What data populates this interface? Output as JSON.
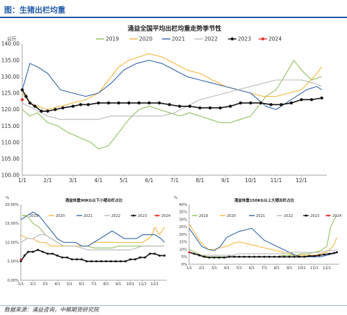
{
  "header": {
    "title": "图：生猪出栏均重"
  },
  "footer": {
    "source": "数据来源：涌益咨询，中粮期货研究院"
  },
  "months": [
    "1/1",
    "2/1",
    "3/1",
    "4/1",
    "5/1",
    "6/1",
    "7/1",
    "8/1",
    "9/1",
    "10/1",
    "11/1",
    "12/1"
  ],
  "colors": {
    "2019": "#8fbf5a",
    "2020": "#f5b43a",
    "2021": "#2e64a8",
    "2022": "#b8b8b8",
    "2023": "#111111",
    "2024": "#e8302c",
    "title_blue": "#1f5aa8"
  },
  "chart_data": [
    {
      "type": "line",
      "title": "涌益全国平均出栏均重走势季节性",
      "ylabel": "公斤",
      "x_ticks": [
        "1/1",
        "2/1",
        "3/1",
        "4/1",
        "5/1",
        "6/1",
        "7/1",
        "8/1",
        "9/1",
        "10/1",
        "11/1",
        "12/1"
      ],
      "y_ticks": [
        "100.00",
        "105.00",
        "110.00",
        "115.00",
        "120.00",
        "125.00",
        "130.00",
        "135.00",
        "140.00"
      ],
      "ylim": [
        100,
        140
      ],
      "xlim": [
        0,
        12
      ],
      "legend": "top",
      "series": [
        {
          "name": "2019",
          "x": [
            0,
            0.3,
            0.6,
            1,
            1.4,
            1.8,
            2.1,
            2.4,
            2.7,
            3,
            3.4,
            3.8,
            4.2,
            4.6,
            5,
            5.4,
            5.8,
            6.2,
            6.6,
            7,
            7.4,
            7.8,
            8.2,
            8.6,
            9,
            9.3,
            9.6,
            10,
            10.4,
            10.7,
            11,
            11.4,
            11.8
          ],
          "y": [
            120,
            118,
            119,
            116,
            115,
            113,
            112,
            111,
            110,
            108,
            109,
            113,
            117,
            120,
            121,
            120,
            119,
            118,
            119,
            118,
            117,
            116,
            116,
            117,
            118,
            121,
            124,
            126,
            131,
            135,
            132,
            129,
            130
          ]
        },
        {
          "name": "2020",
          "x": [
            0,
            0.3,
            0.6,
            1,
            1.5,
            2,
            2.5,
            3,
            3.4,
            3.8,
            4.2,
            4.6,
            5,
            5.5,
            6,
            6.5,
            7,
            7.5,
            8,
            8.5,
            9,
            9.5,
            10,
            10.5,
            11,
            11.5,
            11.8
          ],
          "y": [
            125,
            122,
            121,
            120,
            121,
            122,
            123,
            125,
            129,
            133,
            135,
            136,
            137,
            136,
            134,
            132,
            131,
            129,
            127,
            126,
            125,
            124,
            124,
            125,
            126,
            130,
            133
          ]
        },
        {
          "name": "2021",
          "x": [
            0,
            0.3,
            0.6,
            1,
            1.5,
            2,
            2.5,
            3,
            3.5,
            4,
            4.5,
            5,
            5.5,
            6,
            6.5,
            7,
            7.5,
            8,
            8.5,
            9,
            9.3,
            9.6,
            10,
            10.4,
            10.8,
            11.2,
            11.6,
            11.8
          ],
          "y": [
            126,
            134,
            133,
            131,
            126,
            125,
            124,
            125,
            128,
            132,
            134,
            135,
            134,
            132,
            130,
            129,
            128,
            127,
            126,
            125,
            123,
            121,
            120,
            122,
            124,
            126,
            127,
            126
          ]
        },
        {
          "name": "2022",
          "x": [
            0,
            0.5,
            1,
            1.5,
            2,
            2.5,
            3,
            3.5,
            4,
            4.5,
            5,
            5.5,
            6,
            6.5,
            7,
            7.5,
            8,
            8.5,
            9,
            9.5,
            10,
            10.5,
            11,
            11.5,
            11.8
          ],
          "y": [
            122,
            120,
            118,
            117,
            117,
            117,
            117,
            118,
            118,
            118,
            118,
            118,
            119,
            121,
            123,
            124,
            125,
            126,
            127,
            128,
            129,
            129,
            129,
            128,
            127
          ]
        },
        {
          "name": "2023",
          "x": [
            0,
            0.15,
            0.3,
            0.5,
            0.75,
            1,
            1.3,
            1.6,
            2,
            2.3,
            2.6,
            3,
            3.4,
            3.8,
            4.2,
            4.6,
            5,
            5.4,
            5.8,
            6.2,
            6.6,
            7,
            7.4,
            7.8,
            8.2,
            8.6,
            9,
            9.4,
            9.8,
            10.2,
            10.6,
            11,
            11.4,
            11.8
          ],
          "y": [
            126,
            124,
            122,
            121,
            119.5,
            119.5,
            120,
            120.5,
            121,
            121.5,
            121.5,
            122,
            122,
            122,
            122,
            122,
            122,
            122,
            121.5,
            121,
            121,
            120.5,
            120.5,
            120.5,
            121,
            122,
            122,
            122,
            121.5,
            121.5,
            122,
            123,
            123,
            123.5
          ]
        },
        {
          "name": "2024",
          "x": [
            0
          ],
          "y": [
            123
          ]
        }
      ]
    },
    {
      "type": "line",
      "title": "涌益体重90KG以下小猪出栏占比",
      "ylabel": "%",
      "x_ticks": [
        "1/1",
        "2/1",
        "3/1",
        "4/1",
        "5/1",
        "6/1",
        "7/1",
        "8/1",
        "9/1",
        "10/1",
        "11/1",
        "12/1"
      ],
      "y_ticks": [
        "0.00%",
        "5.00%",
        "10.00%",
        "15.00%",
        "20.00%"
      ],
      "ylim": [
        0,
        20
      ],
      "xlim": [
        0,
        12
      ],
      "legend": "top",
      "series": [
        {
          "name": "2019",
          "x": [
            0,
            0.5,
            1,
            1.5,
            2,
            2.5,
            3,
            3.5,
            4,
            4.5,
            5,
            5.5,
            6,
            6.5,
            7,
            7.5,
            8,
            8.5,
            9,
            9.5,
            10,
            10.5,
            11,
            11.5,
            11.8
          ],
          "y": [
            16,
            17,
            15,
            14,
            12,
            11,
            10,
            9,
            9,
            9,
            9,
            9,
            8.5,
            8.5,
            8.5,
            8.5,
            9,
            9,
            9,
            9,
            9,
            9,
            9,
            9,
            9
          ]
        },
        {
          "name": "2020",
          "x": [
            0,
            0.5,
            1,
            1.5,
            2,
            2.5,
            3,
            3.5,
            4,
            4.5,
            5,
            5.5,
            6,
            6.5,
            7,
            7.5,
            8,
            8.5,
            9,
            9.5,
            10,
            10.5,
            10.8,
            11,
            11.4,
            11.8
          ],
          "y": [
            12,
            11,
            11,
            10,
            10,
            9,
            9,
            9,
            9,
            9,
            9,
            9,
            10,
            10,
            10,
            10,
            10,
            10,
            10,
            10,
            10,
            11,
            12,
            14,
            12,
            14
          ]
        },
        {
          "name": "2021",
          "x": [
            0,
            0.5,
            1,
            1.5,
            2,
            2.5,
            3,
            3.5,
            4,
            4.5,
            5,
            5.5,
            6,
            6.5,
            7,
            7.5,
            8,
            8.5,
            9,
            9.5,
            10,
            10.5,
            11,
            11.5,
            11.8
          ],
          "y": [
            16,
            17,
            18,
            17,
            15,
            13,
            11,
            10,
            10,
            10,
            9,
            9,
            10,
            11,
            12,
            13,
            12,
            11,
            11,
            11,
            12,
            12,
            12,
            11,
            10
          ]
        },
        {
          "name": "2022",
          "x": [
            0,
            0.5,
            1,
            1.5,
            2,
            2.5,
            3,
            3.5,
            4,
            4.5,
            5,
            5.5,
            6,
            6.5,
            7,
            7.5,
            8,
            8.5,
            9,
            9.5,
            10,
            10.5,
            11,
            11.5,
            11.8
          ],
          "y": [
            10,
            11,
            11,
            12,
            12,
            11,
            10,
            9,
            9,
            9,
            8.5,
            8,
            8,
            8,
            8,
            8,
            8,
            8,
            8,
            8.5,
            9,
            9,
            9,
            9,
            9
          ]
        },
        {
          "name": "2023",
          "x": [
            0,
            0.3,
            0.6,
            1,
            1.4,
            1.8,
            2.2,
            2.6,
            3,
            3.4,
            3.8,
            4.2,
            4.6,
            5,
            5.4,
            5.8,
            6.2,
            6.6,
            7,
            7.4,
            7.8,
            8.2,
            8.6,
            9,
            9.4,
            9.8,
            10.2,
            10.6,
            11,
            11.4,
            11.8
          ],
          "y": [
            5,
            6.5,
            7.5,
            7.5,
            8,
            7.5,
            7,
            7,
            6.5,
            6,
            6,
            5.5,
            5.5,
            5.5,
            5,
            5,
            5,
            5,
            5,
            5,
            5,
            5,
            5,
            5.5,
            5.5,
            6,
            6,
            7,
            7,
            6.5,
            6.5
          ]
        },
        {
          "name": "2024",
          "x": [
            0
          ],
          "y": [
            5.5
          ]
        }
      ]
    },
    {
      "type": "line",
      "title": "涌益体重150KG以上大猪出栏占比",
      "ylabel": "%",
      "x_ticks": [
        "1/1",
        "2/1",
        "3/1",
        "4/1",
        "5/1",
        "6/1",
        "7/1",
        "8/1",
        "9/1",
        "10/1",
        "11/1",
        "12/1"
      ],
      "y_ticks": [
        "0%",
        "5%",
        "10%",
        "15%",
        "20%",
        "25%",
        "30%",
        "35%",
        "40%"
      ],
      "ylim": [
        0,
        40
      ],
      "xlim": [
        0,
        12
      ],
      "legend": "top",
      "series": [
        {
          "name": "2019",
          "x": [
            0,
            0.5,
            1,
            1.5,
            2,
            2.5,
            3,
            3.5,
            4,
            4.5,
            5,
            5.5,
            6,
            6.5,
            7,
            7.5,
            8,
            8.5,
            9,
            9.5,
            10,
            10.5,
            11,
            11.3,
            11.6,
            11.8
          ],
          "y": [
            10,
            8,
            6,
            5,
            5,
            5,
            5,
            5,
            5,
            5,
            5,
            5,
            5,
            5,
            5,
            6,
            6,
            6,
            7,
            7,
            8,
            9,
            12,
            25,
            30,
            33
          ]
        },
        {
          "name": "2020",
          "x": [
            0,
            0.5,
            1,
            1.5,
            2,
            2.5,
            3,
            3.5,
            4,
            4.5,
            5,
            5.5,
            6,
            6.5,
            7,
            7.5,
            8,
            8.5,
            9,
            9.5,
            10,
            10.5,
            11,
            11.5,
            11.8
          ],
          "y": [
            27,
            20,
            14,
            10,
            10,
            11,
            12,
            14,
            15,
            14,
            13,
            12,
            11,
            10,
            9,
            8,
            7,
            6,
            6,
            6,
            6,
            7,
            8,
            12,
            18
          ]
        },
        {
          "name": "2021",
          "x": [
            0,
            0.5,
            1,
            1.5,
            2,
            2.5,
            3,
            3.5,
            4,
            4.5,
            5,
            5.5,
            6,
            6.5,
            7,
            7.5,
            8,
            8.5,
            9,
            9.5,
            10,
            10.5,
            11,
            11.5,
            11.8
          ],
          "y": [
            24,
            18,
            12,
            10,
            9,
            12,
            18,
            20,
            22,
            23,
            24,
            20,
            16,
            14,
            12,
            10,
            8,
            6,
            5,
            5,
            5,
            5,
            6,
            7,
            8
          ]
        },
        {
          "name": "2022",
          "x": [
            0,
            0.5,
            1,
            1.5,
            2,
            2.5,
            3,
            3.5,
            4,
            4.5,
            5,
            5.5,
            6,
            6.5,
            7,
            7.5,
            8,
            8.5,
            9,
            9.5,
            10,
            10.5,
            11,
            11.5,
            11.8
          ],
          "y": [
            8,
            7,
            6,
            6,
            6,
            6,
            6,
            6,
            7,
            7,
            7,
            7,
            7,
            7,
            7,
            7,
            8,
            8,
            8,
            8,
            8,
            8,
            9,
            9,
            10
          ]
        },
        {
          "name": "2023",
          "x": [
            0,
            0.4,
            0.8,
            1.2,
            1.6,
            2,
            2.4,
            2.8,
            3.2,
            3.6,
            4,
            4.4,
            4.8,
            5.2,
            5.6,
            6,
            6.4,
            6.8,
            7.2,
            7.6,
            8,
            8.4,
            8.8,
            9.2,
            9.6,
            10,
            10.4,
            10.8,
            11.2,
            11.6,
            11.8
          ],
          "y": [
            8,
            7,
            6,
            5,
            4.5,
            4.5,
            4.5,
            4.5,
            5,
            5,
            5,
            5,
            5,
            5,
            5,
            5,
            5,
            5,
            5,
            5,
            5,
            5,
            5,
            5,
            5.5,
            5.5,
            6,
            6.5,
            7,
            7.5,
            8
          ]
        },
        {
          "name": "2024",
          "x": [
            0
          ],
          "y": [
            8
          ]
        }
      ]
    }
  ]
}
